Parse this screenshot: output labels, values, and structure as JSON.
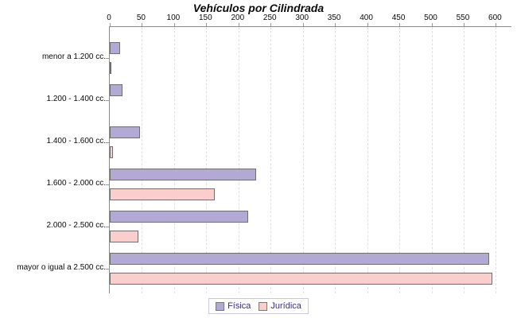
{
  "title": "Vehículos por Cilindrada",
  "colors": {
    "fisica_fill": "#b3a9d5",
    "juridica_fill": "#fbcece",
    "bar_border": "#6f6f6f",
    "axis_line": "#8a8a8a",
    "gridline": "#e0e0e0",
    "legend_text": "#3a2d84",
    "legend_border": "#c9c6dd",
    "text": "#0a0a0a"
  },
  "legend": {
    "position": "bottom",
    "items": [
      {
        "label": "Física",
        "color": "#b3a9d5"
      },
      {
        "label": "Jurídica",
        "color": "#fbcece"
      }
    ]
  },
  "chart_data": {
    "type": "bar",
    "orientation": "horizontal",
    "title": "Vehículos por Cilindrada",
    "categories": [
      "menor a 1.200 cc.",
      "1.200 - 1.400 cc.",
      "1.400 - 1.600 cc.",
      "1.600 - 2.000 cc.",
      "2.000 - 2.500 cc.",
      "mayor o igual a 2.500 cc."
    ],
    "series": [
      {
        "name": "Física",
        "color": "#b3a9d5",
        "values": [
          16,
          20,
          47,
          228,
          215,
          589
        ]
      },
      {
        "name": "Jurídica",
        "color": "#fbcece",
        "values": [
          2,
          0,
          5,
          163,
          44,
          595
        ]
      }
    ],
    "x_ticks": [
      0,
      50,
      100,
      150,
      200,
      250,
      300,
      350,
      400,
      450,
      500,
      550,
      600
    ],
    "xlim": [
      0,
      620
    ],
    "xlabel": "",
    "ylabel": "",
    "grid": "vertical-dashed",
    "legend_position": "bottom"
  }
}
